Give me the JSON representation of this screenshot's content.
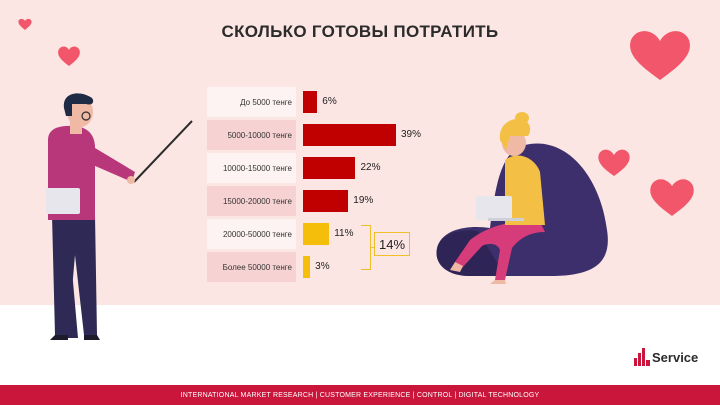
{
  "title": "СКОЛЬКО ГОТОВЫ ПОТРАТИТЬ",
  "chart_data": {
    "type": "bar",
    "orientation": "horizontal",
    "title": "СКОЛЬКО ГОТОВЫ ПОТРАТИТЬ",
    "categories": [
      "До 5000 тенге",
      "5000-10000 тенге",
      "10000-15000 тенге",
      "15000-20000 тенге",
      "20000-50000 тенге",
      "Более 50000 тенге"
    ],
    "values": [
      6,
      39,
      22,
      19,
      11,
      3
    ],
    "value_labels": [
      "6%",
      "39%",
      "22%",
      "19%",
      "11%",
      "3%"
    ],
    "colors": [
      "#c00000",
      "#c00000",
      "#c00000",
      "#c00000",
      "#f5be0b",
      "#f5be0b"
    ],
    "group_annotation": {
      "categories": [
        "20000-50000 тенге",
        "Более 50000 тенге"
      ],
      "label": "14%"
    },
    "xlim": [
      0,
      45
    ],
    "grid": false,
    "legend": "none"
  },
  "brand": {
    "name": "Service",
    "accent": "#c9163a"
  },
  "footer": "INTERNATIONAL MARKET RESEARCH  |  CUSTOMER EXPERIENCE  |  CONTROL  |  DIGITAL TECHNOLOGY",
  "icons": [
    "heart-icon",
    "teacher-illustration",
    "woman-on-beanbag-illustration",
    "logo-icon"
  ]
}
